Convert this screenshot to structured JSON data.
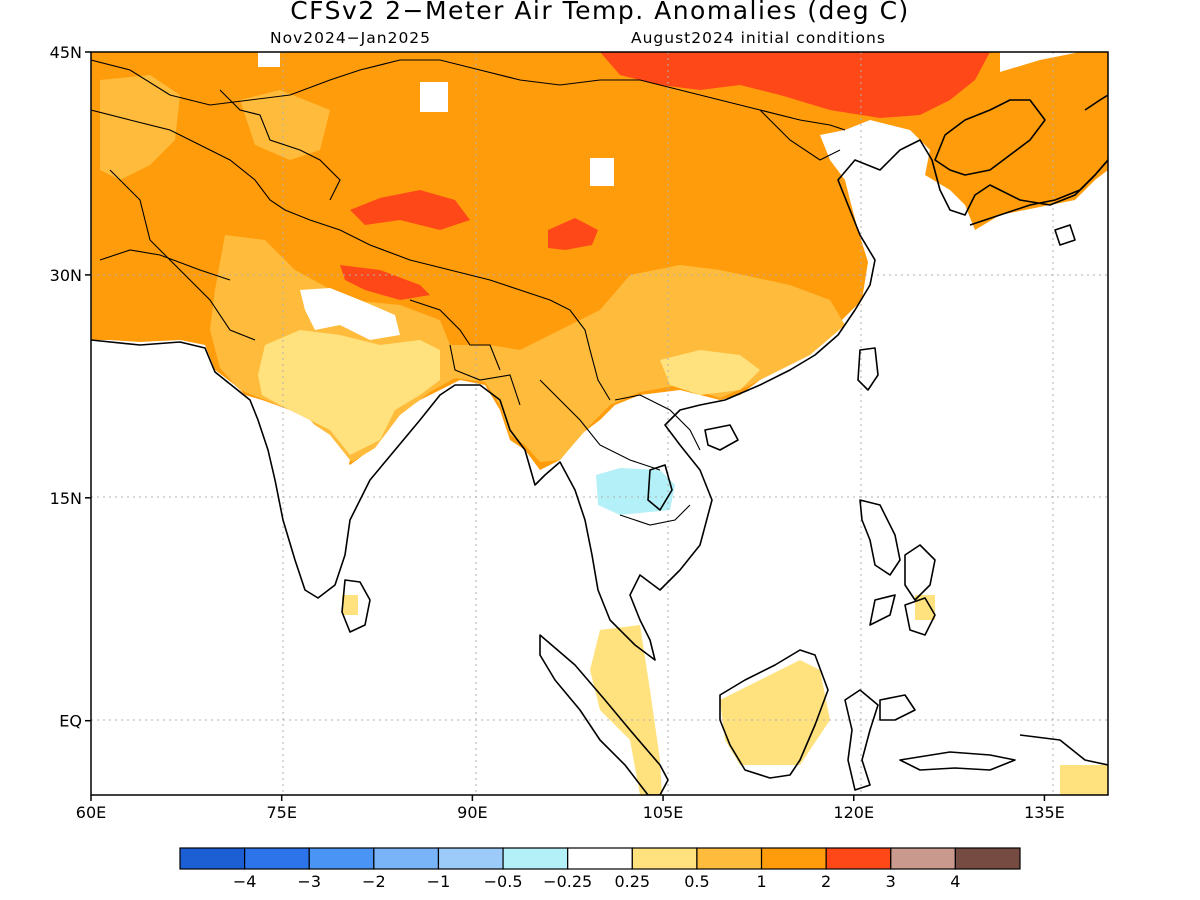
{
  "title": "CFSv2 2−Meter Air Temp. Anomalies (deg C)",
  "subtitle_left": "Nov2024−Jan2025",
  "subtitle_right": "August2024 initial conditions",
  "map": {
    "lon_ticks": [
      {
        "value": 60,
        "label": "60E"
      },
      {
        "value": 75,
        "label": "75E"
      },
      {
        "value": 90,
        "label": "90E"
      },
      {
        "value": 105,
        "label": "105E"
      },
      {
        "value": 120,
        "label": "120E"
      },
      {
        "value": 135,
        "label": "135E"
      }
    ],
    "lat_ticks": [
      {
        "value": 45,
        "label": "45N"
      },
      {
        "value": 30,
        "label": "30N"
      },
      {
        "value": 15,
        "label": "15N"
      },
      {
        "value": 0,
        "label": "EQ"
      }
    ],
    "lon_range": [
      60,
      140
    ],
    "lat_range": [
      -5,
      45
    ],
    "grid": true
  },
  "colorbar": {
    "colors": [
      "#1c5fd4",
      "#2d74ea",
      "#4a94f5",
      "#78b4f7",
      "#9ccbf9",
      "#b4f0f8",
      "#ffffff",
      "#ffe27e",
      "#ffbb3b",
      "#ff9c0c",
      "#ff4818",
      "#c8998c",
      "#764c42"
    ],
    "labels": [
      "−4",
      "−3",
      "−2",
      "−1",
      "−0.5",
      "−0.25",
      "0.25",
      "0.5",
      "1",
      "2",
      "3",
      "4"
    ]
  }
}
